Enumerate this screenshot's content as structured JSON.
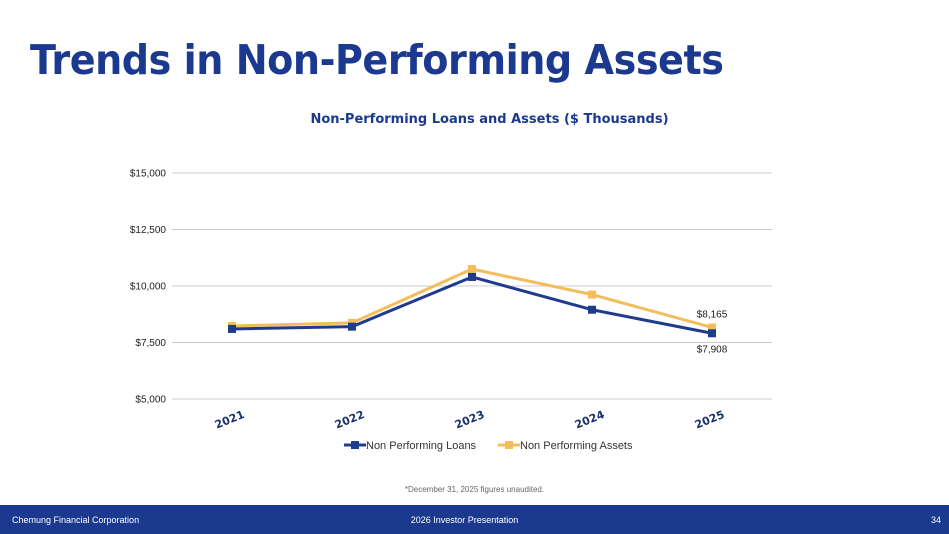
{
  "page": {
    "title": "Trends in Non-Performing Assets",
    "footnote": "*December 31, 2025 figures unaudited.",
    "footer": {
      "company": "Chemung Financial Corporation",
      "presentation": "2026 Investor Presentation",
      "page_number": "34"
    }
  },
  "colors": {
    "title": "#1b3a8f",
    "loans": "#1f3b8e",
    "assets": "#f3bd5b",
    "grid": "#cccccc",
    "footer_bg": "#1b3a8f"
  },
  "chart_data": {
    "type": "line",
    "title": "Non-Performing Loans and Assets ($ Thousands)",
    "categories": [
      "2021",
      "2022",
      "2023",
      "2024",
      "2025"
    ],
    "series": [
      {
        "name": "Non Performing Loans",
        "values": [
          8100,
          8200,
          10400,
          8950,
          7908
        ],
        "color": "#1f3b8e"
      },
      {
        "name": "Non Performing Assets",
        "values": [
          8230,
          8370,
          10750,
          9620,
          8165
        ],
        "color": "#f3bd5b"
      }
    ],
    "yticks": [
      5000,
      7500,
      10000,
      12500,
      15000
    ],
    "ytick_labels": [
      "$5,000",
      "$7,500",
      "$10,000",
      "$12,500",
      "$15,000"
    ],
    "ylim": [
      5000,
      15000
    ],
    "data_labels": [
      {
        "series": "Non Performing Assets",
        "category": "2025",
        "text": "$8,165"
      },
      {
        "series": "Non Performing Loans",
        "category": "2025",
        "text": "$7,908"
      }
    ],
    "legend_position": "bottom",
    "xlabel": "",
    "ylabel": ""
  }
}
